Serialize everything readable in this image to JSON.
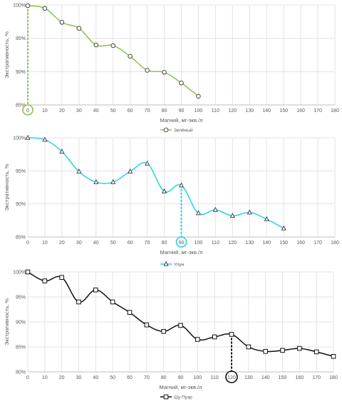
{
  "chart_data": [
    {
      "type": "line",
      "xlabel": "Магний, мг-экв./л",
      "ylabel": "Экстративность, %",
      "x_ticks": [
        0,
        10,
        20,
        30,
        40,
        50,
        60,
        70,
        80,
        90,
        100,
        110,
        120,
        130,
        140,
        150,
        160,
        170,
        180
      ],
      "y_ticks": [
        "85%",
        "90%",
        "95%",
        "100%"
      ],
      "xlim": [
        0,
        180
      ],
      "ylim": [
        85,
        100
      ],
      "grid": true,
      "legend_position": "bottom",
      "series": [
        {
          "name": "Зелёный",
          "color": "#8bc34a",
          "marker": "circle",
          "x": [
            0,
            10,
            20,
            30,
            40,
            50,
            60,
            70,
            80,
            90,
            100
          ],
          "y": [
            99.9,
            99.5,
            97.4,
            96.5,
            94.0,
            93.9,
            92.3,
            90.2,
            89.9,
            88.3,
            86.3
          ]
        }
      ],
      "annotation": {
        "x": 0,
        "y": 99.9,
        "label": "0",
        "color": "#8bc34a"
      }
    },
    {
      "type": "line",
      "xlabel": "Магний, мг-экв./л",
      "ylabel": "Экстративность, %",
      "x_ticks": [
        0,
        10,
        20,
        30,
        40,
        50,
        60,
        70,
        80,
        90,
        100,
        110,
        120,
        130,
        140,
        150,
        160,
        170,
        180
      ],
      "y_ticks": [
        "85%",
        "90%",
        "95%",
        "100%"
      ],
      "xlim": [
        0,
        180
      ],
      "ylim": [
        85,
        100
      ],
      "grid": true,
      "legend_position": "bottom",
      "series": [
        {
          "name": "Улун",
          "color": "#22d3ee",
          "marker": "triangle",
          "x": [
            0,
            10,
            20,
            30,
            40,
            50,
            60,
            70,
            80,
            90,
            100,
            110,
            120,
            130,
            140,
            150
          ],
          "y": [
            100.0,
            99.7,
            97.9,
            94.9,
            93.3,
            93.3,
            94.9,
            96.1,
            91.9,
            92.8,
            88.6,
            89.1,
            88.2,
            88.7,
            87.7,
            86.3
          ]
        }
      ],
      "annotation": {
        "x": 90,
        "y": 92.8,
        "label": "90",
        "color": "#22d3ee"
      }
    },
    {
      "type": "line",
      "xlabel": "Магний, мг-экв./л",
      "ylabel": "Экстративность, %",
      "x_ticks": [
        0,
        10,
        20,
        30,
        40,
        50,
        60,
        70,
        80,
        90,
        100,
        110,
        120,
        130,
        140,
        150,
        160,
        170,
        180
      ],
      "y_ticks": [
        "80%",
        "85%",
        "90%",
        "95%",
        "100%"
      ],
      "xlim": [
        0,
        180
      ],
      "ylim": [
        80,
        100
      ],
      "grid": true,
      "legend_position": "bottom",
      "series": [
        {
          "name": "Шу Пуэр",
          "color": "#111111",
          "marker": "square",
          "x": [
            0,
            10,
            20,
            30,
            40,
            50,
            60,
            70,
            80,
            90,
            100,
            110,
            120,
            130,
            140,
            150,
            160,
            170,
            180
          ],
          "y": [
            100.0,
            98.2,
            98.9,
            94.0,
            96.4,
            94.0,
            91.9,
            89.4,
            88.1,
            89.3,
            86.5,
            87.0,
            87.5,
            85.0,
            84.1,
            84.3,
            84.7,
            84.0,
            83.1
          ]
        }
      ],
      "annotation": {
        "x": 120,
        "y": 87.5,
        "label": "120",
        "color": "#111111"
      }
    }
  ]
}
